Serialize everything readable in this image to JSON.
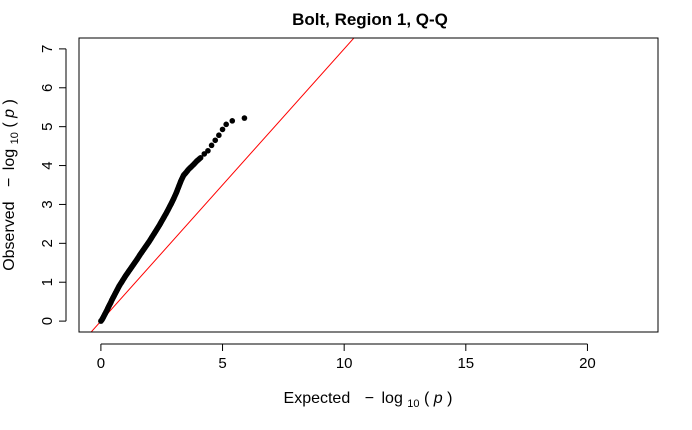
{
  "chart_data": {
    "type": "scatter",
    "title": "Bolt, Region 1, Q-Q",
    "xlabel": {
      "prefix": "Expected",
      "minus": "−",
      "log": "log",
      "sub": "10",
      "open": "(",
      "var": "p",
      "close": ")"
    },
    "ylabel": {
      "prefix": "Observed",
      "minus": "−",
      "log": "log",
      "sub": "10",
      "open": "(",
      "var": "p",
      "close": ")"
    },
    "xlim": [
      -0.9,
      22.9
    ],
    "ylim": [
      -0.28,
      7.28
    ],
    "x_ticks": [
      0,
      5,
      10,
      15,
      20
    ],
    "y_ticks": [
      0,
      1,
      2,
      3,
      4,
      5,
      6,
      7
    ],
    "point_color": "#000000",
    "reference_line": {
      "slope": 0.7,
      "intercept": 0,
      "color": "#ff0000"
    },
    "series": [
      {
        "points": [
          [
            0.0,
            0.0
          ],
          [
            0.05,
            0.04
          ],
          [
            0.1,
            0.1
          ],
          [
            0.15,
            0.16
          ],
          [
            0.2,
            0.22
          ],
          [
            0.25,
            0.28
          ],
          [
            0.3,
            0.35
          ],
          [
            0.35,
            0.41
          ],
          [
            0.4,
            0.47
          ],
          [
            0.45,
            0.54
          ],
          [
            0.5,
            0.6
          ],
          [
            0.55,
            0.66
          ],
          [
            0.6,
            0.72
          ],
          [
            0.65,
            0.78
          ],
          [
            0.7,
            0.84
          ],
          [
            0.75,
            0.9
          ],
          [
            0.8,
            0.95
          ],
          [
            0.85,
            1.0
          ],
          [
            0.9,
            1.05
          ],
          [
            0.95,
            1.1
          ],
          [
            1.0,
            1.15
          ],
          [
            1.1,
            1.24
          ],
          [
            1.2,
            1.33
          ],
          [
            1.3,
            1.42
          ],
          [
            1.4,
            1.51
          ],
          [
            1.5,
            1.6
          ],
          [
            1.6,
            1.7
          ],
          [
            1.7,
            1.79
          ],
          [
            1.8,
            1.88
          ],
          [
            1.9,
            1.97
          ],
          [
            2.0,
            2.06
          ],
          [
            2.1,
            2.16
          ],
          [
            2.2,
            2.26
          ],
          [
            2.3,
            2.36
          ],
          [
            2.4,
            2.46
          ],
          [
            2.5,
            2.57
          ],
          [
            2.6,
            2.68
          ],
          [
            2.7,
            2.79
          ],
          [
            2.8,
            2.91
          ],
          [
            2.9,
            3.03
          ],
          [
            3.0,
            3.16
          ],
          [
            3.1,
            3.3
          ],
          [
            3.2,
            3.46
          ],
          [
            3.3,
            3.62
          ],
          [
            3.4,
            3.75
          ],
          [
            3.5,
            3.82
          ],
          [
            3.6,
            3.9
          ],
          [
            3.7,
            3.96
          ],
          [
            3.8,
            4.02
          ],
          [
            3.95,
            4.12
          ],
          [
            4.1,
            4.2
          ],
          [
            4.25,
            4.3
          ],
          [
            4.4,
            4.38
          ],
          [
            4.55,
            4.52
          ],
          [
            4.7,
            4.65
          ],
          [
            4.85,
            4.78
          ],
          [
            5.0,
            4.93
          ],
          [
            5.15,
            5.06
          ],
          [
            5.4,
            5.15
          ],
          [
            5.9,
            5.22
          ]
        ]
      }
    ]
  }
}
